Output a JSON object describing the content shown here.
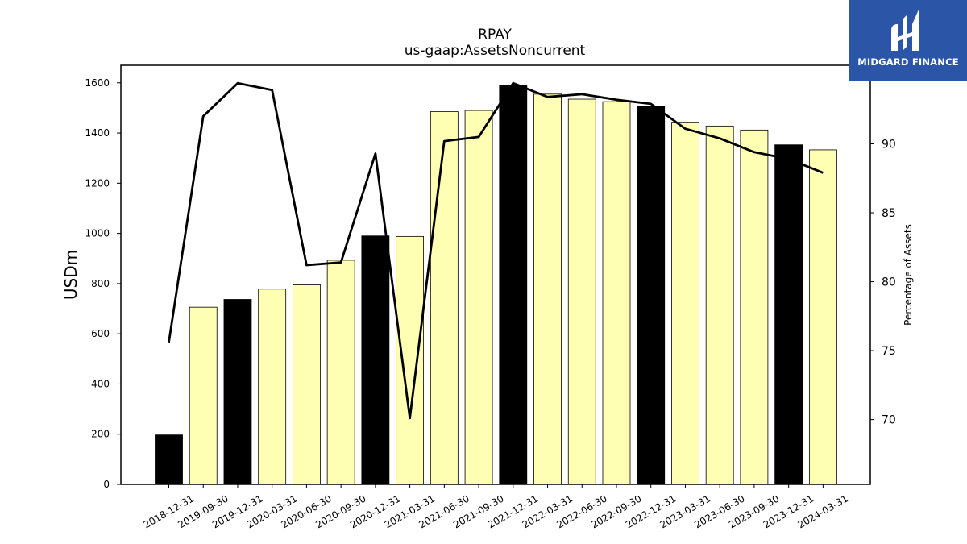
{
  "logo": {
    "text": "MIDGARD FINANCE"
  },
  "chart_data": {
    "type": "bar",
    "title": "RPAY",
    "subtitle": "us-gaap:AssetsNoncurrent",
    "ylabel": "USDm",
    "y2label": "Percentage of Assets",
    "ylim": [
      0,
      1670
    ],
    "y2lim": [
      65.3,
      95.7
    ],
    "yticks": [
      0,
      200,
      400,
      600,
      800,
      1000,
      1200,
      1400,
      1600
    ],
    "y2ticks": [
      70,
      75,
      80,
      85,
      90
    ],
    "categories": [
      "2018-12-31",
      "2019-09-30",
      "2019-12-31",
      "2020-03-31",
      "2020-06-30",
      "2020-09-30",
      "2020-12-31",
      "2021-03-31",
      "2021-06-30",
      "2021-09-30",
      "2021-12-31",
      "2022-03-31",
      "2022-06-30",
      "2022-09-30",
      "2022-12-31",
      "2023-03-31",
      "2023-06-30",
      "2023-09-30",
      "2023-12-31",
      "2024-03-31"
    ],
    "series": [
      {
        "type": "bar",
        "axis": "left",
        "values": [
          197,
          706,
          737,
          778,
          795,
          893,
          990,
          988,
          1485,
          1490,
          1590,
          1555,
          1535,
          1525,
          1508,
          1443,
          1428,
          1412,
          1353,
          1333
        ]
      },
      {
        "type": "line",
        "axis": "right",
        "values": [
          75.6,
          92.0,
          94.4,
          93.9,
          81.2,
          81.4,
          89.3,
          70.1,
          90.2,
          90.5,
          94.4,
          93.4,
          93.6,
          93.2,
          92.9,
          91.1,
          90.4,
          89.4,
          88.9,
          87.9
        ]
      }
    ],
    "bar_fill_annual": "#000000",
    "bar_fill_quarterly": "#ffffb3",
    "annual_bars": [
      true,
      false,
      true,
      false,
      false,
      false,
      true,
      false,
      false,
      false,
      true,
      false,
      false,
      false,
      true,
      false,
      false,
      false,
      true,
      false
    ],
    "line_color": "#000000",
    "grid": false
  }
}
